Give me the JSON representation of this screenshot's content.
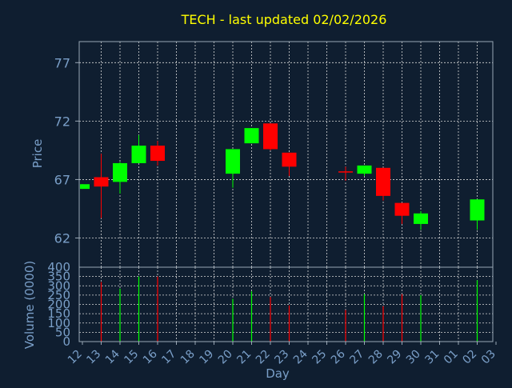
{
  "chart_data": {
    "type": "candlestick",
    "title": "TECH - last updated 02/02/2026",
    "xlabel": "Day",
    "price_panel": {
      "ylabel": "Price",
      "ylim": [
        59.5,
        78.8
      ],
      "yticks": [
        62,
        67,
        72,
        77
      ]
    },
    "volume_panel": {
      "ylabel": "Volume (0000)",
      "ylim": [
        0,
        400
      ],
      "yticks": [
        0,
        50,
        100,
        150,
        200,
        250,
        300,
        350,
        400
      ]
    },
    "x_ticks": [
      "12",
      "13",
      "14",
      "15",
      "16",
      "17",
      "18",
      "19",
      "20",
      "21",
      "22",
      "23",
      "24",
      "25",
      "26",
      "27",
      "28",
      "29",
      "30",
      "31",
      "01",
      "02",
      "03"
    ],
    "grid": true,
    "colors": {
      "background": "#0f1e30",
      "title": "#ffff00",
      "axis_text": "#7a9fc8",
      "frame": "#9aa8b6",
      "grid": "#d8d8d8",
      "up": "#00ff00",
      "down": "#ff0000"
    },
    "candles": [
      {
        "day": "12",
        "open": 66.2,
        "high": 66.6,
        "low": 66.2,
        "close": 66.6,
        "volume": 0
      },
      {
        "day": "13",
        "open": 67.2,
        "high": 69.2,
        "low": 63.7,
        "close": 66.4,
        "volume": 320
      },
      {
        "day": "14",
        "open": 66.8,
        "high": 68.5,
        "low": 65.8,
        "close": 68.4,
        "volume": 285
      },
      {
        "day": "15",
        "open": 68.4,
        "high": 70.8,
        "low": 68.4,
        "close": 69.9,
        "volume": 350
      },
      {
        "day": "16",
        "open": 69.9,
        "high": 70.3,
        "low": 68.2,
        "close": 68.6,
        "volume": 350
      },
      {
        "day": "20",
        "open": 67.5,
        "high": 69.6,
        "low": 66.3,
        "close": 69.6,
        "volume": 230
      },
      {
        "day": "21",
        "open": 70.1,
        "high": 71.4,
        "low": 70.1,
        "close": 71.4,
        "volume": 270
      },
      {
        "day": "22",
        "open": 71.8,
        "high": 71.8,
        "low": 69.5,
        "close": 69.6,
        "volume": 240
      },
      {
        "day": "23",
        "open": 69.3,
        "high": 69.3,
        "low": 67.3,
        "close": 68.1,
        "volume": 195
      },
      {
        "day": "26",
        "open": 67.7,
        "high": 68.1,
        "low": 66.9,
        "close": 67.6,
        "volume": 170
      },
      {
        "day": "27",
        "open": 67.5,
        "high": 68.2,
        "low": 67.3,
        "close": 68.2,
        "volume": 255
      },
      {
        "day": "28",
        "open": 68.0,
        "high": 68.0,
        "low": 65.2,
        "close": 65.6,
        "volume": 190
      },
      {
        "day": "29",
        "open": 65.0,
        "high": 65.0,
        "low": 63.2,
        "close": 63.9,
        "volume": 255
      },
      {
        "day": "30",
        "open": 63.2,
        "high": 64.3,
        "low": 62.7,
        "close": 64.1,
        "volume": 250
      },
      {
        "day": "02",
        "open": 63.5,
        "high": 65.3,
        "low": 62.7,
        "close": 65.3,
        "volume": 330
      }
    ]
  }
}
